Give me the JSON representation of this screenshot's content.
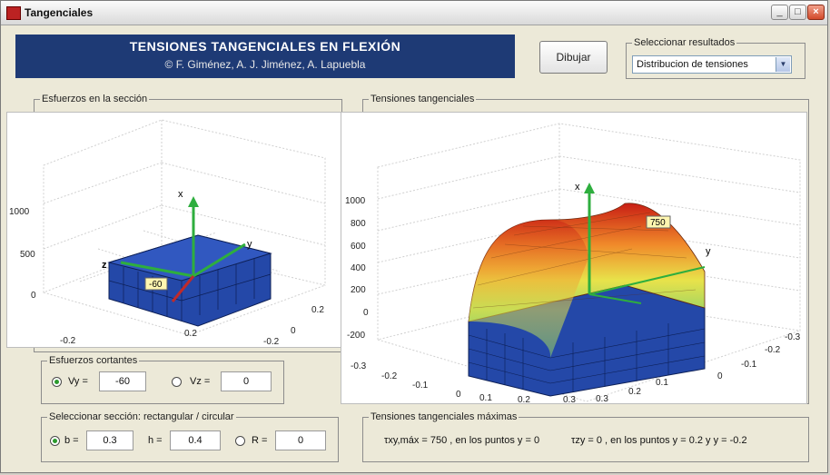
{
  "window": {
    "title": "Tangenciales",
    "min_glyph": "_",
    "max_glyph": "□",
    "close_glyph": "×"
  },
  "banner": {
    "title": "TENSIONES TANGENCIALES EN FLEXIÓN",
    "authors": "© F. Giménez, A. J. Jiménez, A. Lapuebla"
  },
  "toolbar": {
    "draw_label": "Dibujar"
  },
  "results": {
    "legend": "Seleccionar resultados",
    "selected": "Distribucion de tensiones",
    "arrow": "▼"
  },
  "left_plot": {
    "legend": "Esfuerzos en la sección",
    "z_ticks": [
      "1000",
      "500",
      "0"
    ],
    "x_ticks": [
      "-0.2",
      "0",
      "0.2"
    ],
    "y_ticks": [
      "0.2",
      "0",
      "-0.2"
    ],
    "axis_x": "x",
    "axis_y": "y",
    "axis_z": "z",
    "value_label": "-60"
  },
  "right_plot": {
    "legend": "Tensiones tangenciales",
    "z_ticks": [
      "1000",
      "800",
      "600",
      "400",
      "200",
      "0",
      "-200"
    ],
    "front_ticks": [
      "-0.3",
      "-0.2",
      "-0.1",
      "0",
      "0.1",
      "0.2",
      "0.3"
    ],
    "side_ticks": [
      "-0.3",
      "-0.2",
      "-0.1",
      "0",
      "0.1",
      "0.2",
      "0.3"
    ],
    "axis_x": "x",
    "axis_y": "y",
    "value_label": "750"
  },
  "shear": {
    "legend": "Esfuerzos cortantes",
    "vy_label": "Vy =",
    "vy_value": "-60",
    "vz_label": "Vz =",
    "vz_value": "0"
  },
  "section": {
    "legend": "Seleccionar sección:  rectangular / circular",
    "b_label": "b =",
    "b_value": "0.3",
    "h_label": "h =",
    "h_value": "0.4",
    "r_label": "R =",
    "r_value": "0"
  },
  "max_stress": {
    "legend": "Tensiones tangenciales máximas",
    "left_text": "τxy,máx = 750 , en los puntos  y = 0",
    "right_text": "τzy = 0 , en los puntos  y = 0.2  y  y = -0.2"
  }
}
